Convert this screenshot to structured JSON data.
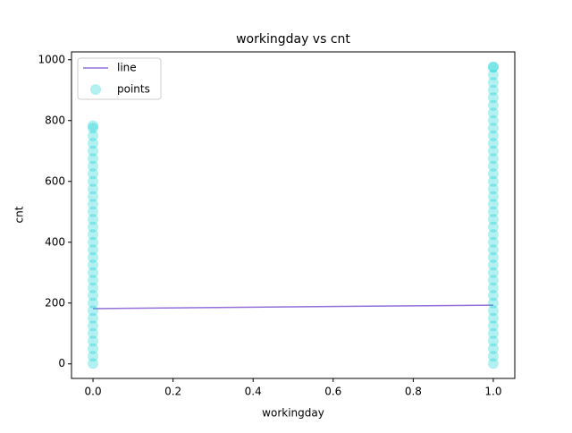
{
  "chart_data": {
    "type": "scatter",
    "title": "workingday vs cnt",
    "xlabel": "workingday",
    "ylabel": "cnt",
    "xlim": [
      -0.0537,
      1.0537
    ],
    "ylim": [
      -47.8,
      1025.8
    ],
    "xticks": [
      {
        "value": 0,
        "label": "0.0"
      },
      {
        "value": 0.2,
        "label": "0.2"
      },
      {
        "value": 0.4,
        "label": "0.4"
      },
      {
        "value": 0.6,
        "label": "0.6"
      },
      {
        "value": 0.8,
        "label": "0.8"
      },
      {
        "value": 1,
        "label": "1.0"
      }
    ],
    "yticks": [
      0,
      200,
      400,
      600,
      800,
      1000
    ],
    "legend": "upper left",
    "series": [
      {
        "name": "line",
        "type": "line",
        "color": "#9370db",
        "x": [
          0,
          1
        ],
        "values": [
          181.7,
          193.2
        ]
      },
      {
        "name": "points",
        "type": "scatter",
        "color": "#00ced1",
        "alpha": 0.3,
        "x": [
          0,
          0,
          0,
          0,
          0,
          0,
          0,
          0,
          0,
          0,
          0,
          0,
          0,
          0,
          0,
          0,
          0,
          0,
          0,
          0,
          0,
          0,
          0,
          0,
          0,
          0,
          0,
          0,
          0,
          0,
          0,
          0,
          0,
          1,
          1,
          1,
          1,
          1,
          1,
          1,
          1,
          1,
          1,
          1,
          1,
          1,
          1,
          1,
          1,
          1,
          1,
          1,
          1,
          1,
          1,
          1,
          1,
          1,
          1,
          1,
          1,
          1,
          1,
          1,
          1,
          1,
          1,
          1,
          1,
          1,
          1,
          1,
          1,
          1
        ],
        "values": [
          1,
          25,
          50,
          75,
          100,
          125,
          150,
          175,
          200,
          225,
          250,
          275,
          300,
          325,
          350,
          375,
          400,
          425,
          450,
          475,
          500,
          525,
          550,
          575,
          600,
          625,
          650,
          675,
          700,
          725,
          750,
          775,
          783,
          1,
          25,
          50,
          75,
          100,
          125,
          150,
          175,
          200,
          225,
          250,
          275,
          300,
          325,
          350,
          375,
          400,
          425,
          450,
          475,
          500,
          525,
          550,
          575,
          600,
          625,
          650,
          675,
          700,
          725,
          750,
          775,
          800,
          825,
          850,
          875,
          900,
          925,
          950,
          975,
          977
        ]
      }
    ]
  }
}
